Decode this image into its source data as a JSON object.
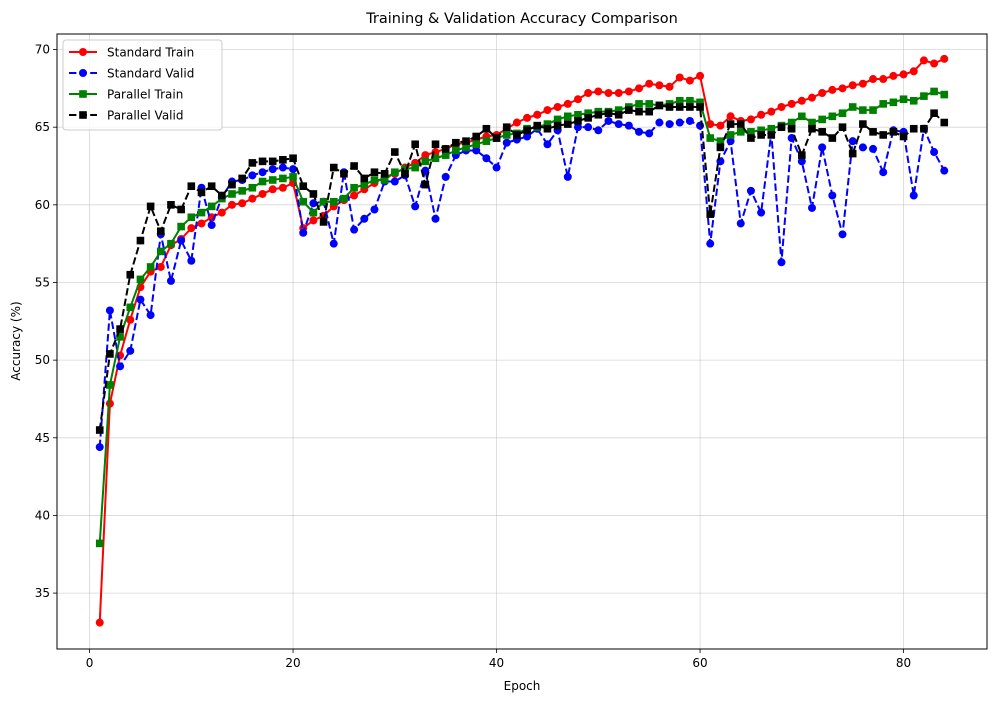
{
  "chart_data": {
    "type": "line",
    "title": "Training & Validation Accuracy Comparison",
    "xlabel": "Epoch",
    "ylabel": "Accuracy (%)",
    "xlim": [
      -3.2,
      88.2
    ],
    "ylim": [
      31.4,
      71.0
    ],
    "xticks": [
      0,
      20,
      40,
      60,
      80
    ],
    "yticks": [
      35,
      40,
      45,
      50,
      55,
      60,
      65,
      70
    ],
    "grid": true,
    "legend": "top-left",
    "x": [
      1,
      2,
      3,
      4,
      5,
      6,
      7,
      8,
      9,
      10,
      11,
      12,
      13,
      14,
      15,
      16,
      17,
      18,
      19,
      20,
      21,
      22,
      23,
      24,
      25,
      26,
      27,
      28,
      29,
      30,
      31,
      32,
      33,
      34,
      35,
      36,
      37,
      38,
      39,
      40,
      41,
      42,
      43,
      44,
      45,
      46,
      47,
      48,
      49,
      50,
      51,
      52,
      53,
      54,
      55,
      56,
      57,
      58,
      59,
      60,
      61,
      62,
      63,
      64,
      65,
      66,
      67,
      68,
      69,
      70,
      71,
      72,
      73,
      74,
      75,
      76,
      77,
      78,
      79,
      80,
      81,
      82,
      83,
      84
    ],
    "series": [
      {
        "name": "Standard Train",
        "color": "#ff0000",
        "line": "solid",
        "marker": "circle",
        "values": [
          33.1,
          47.2,
          50.3,
          52.6,
          54.7,
          55.7,
          56.0,
          57.4,
          57.8,
          58.5,
          58.8,
          59.2,
          59.5,
          60.0,
          60.1,
          60.4,
          60.7,
          61.0,
          61.1,
          61.4,
          58.5,
          59.0,
          59.3,
          59.9,
          60.3,
          60.6,
          61.0,
          61.4,
          61.8,
          62.0,
          62.4,
          62.7,
          63.2,
          63.4,
          63.6,
          63.9,
          64.0,
          64.2,
          64.4,
          64.5,
          64.9,
          65.3,
          65.6,
          65.8,
          66.1,
          66.3,
          66.5,
          66.8,
          67.2,
          67.3,
          67.2,
          67.2,
          67.3,
          67.5,
          67.8,
          67.7,
          67.6,
          68.2,
          68.0,
          68.3,
          65.2,
          65.1,
          65.7,
          65.4,
          65.5,
          65.8,
          66.0,
          66.3,
          66.5,
          66.7,
          66.9,
          67.2,
          67.4,
          67.5,
          67.7,
          67.8,
          68.1,
          68.1,
          68.3,
          68.4,
          68.6,
          69.3,
          69.1,
          69.4
        ]
      },
      {
        "name": "Standard Valid",
        "color": "#0000ff",
        "line": "dashed",
        "marker": "circle",
        "values": [
          44.4,
          53.2,
          49.6,
          50.6,
          53.9,
          52.9,
          58.1,
          55.1,
          57.7,
          56.4,
          61.1,
          58.7,
          60.5,
          61.5,
          61.6,
          61.9,
          62.1,
          62.3,
          62.4,
          62.3,
          58.2,
          60.1,
          60.2,
          57.5,
          62.1,
          58.4,
          59.1,
          59.7,
          61.5,
          61.5,
          61.9,
          59.9,
          62.2,
          59.1,
          61.8,
          63.2,
          63.5,
          63.5,
          63.0,
          62.4,
          64.0,
          64.2,
          64.4,
          64.9,
          63.9,
          64.8,
          61.8,
          65.0,
          65.0,
          64.8,
          65.4,
          65.2,
          65.1,
          64.7,
          64.6,
          65.3,
          65.2,
          65.3,
          65.4,
          65.1,
          57.5,
          62.8,
          64.1,
          58.8,
          60.9,
          59.5,
          64.6,
          56.3,
          64.3,
          62.8,
          59.8,
          63.7,
          60.6,
          58.1,
          64.1,
          63.7,
          63.6,
          62.1,
          64.8,
          64.7,
          60.6,
          64.9,
          63.4,
          62.2
        ]
      },
      {
        "name": "Parallel Train",
        "color": "#008000",
        "line": "solid",
        "marker": "square",
        "values": [
          38.2,
          48.4,
          51.5,
          53.4,
          55.2,
          56.0,
          57.0,
          57.5,
          58.6,
          59.2,
          59.5,
          59.9,
          60.4,
          60.7,
          60.9,
          61.1,
          61.5,
          61.6,
          61.7,
          61.8,
          60.2,
          59.5,
          60.2,
          60.2,
          60.4,
          61.1,
          61.3,
          61.6,
          61.6,
          62.1,
          62.3,
          62.4,
          62.8,
          63.0,
          63.2,
          63.5,
          63.7,
          63.9,
          64.1,
          64.3,
          64.5,
          64.6,
          64.9,
          65.0,
          65.2,
          65.5,
          65.7,
          65.8,
          65.9,
          66.0,
          66.0,
          66.1,
          66.3,
          66.5,
          66.5,
          66.4,
          66.5,
          66.7,
          66.7,
          66.6,
          64.3,
          64.1,
          64.5,
          64.7,
          64.7,
          64.8,
          64.9,
          65.1,
          65.3,
          65.7,
          65.3,
          65.5,
          65.7,
          65.9,
          66.3,
          66.1,
          66.1,
          66.5,
          66.6,
          66.8,
          66.7,
          67.0,
          67.3,
          67.1
        ]
      },
      {
        "name": "Parallel Valid",
        "color": "#000000",
        "line": "dashed",
        "marker": "square",
        "values": [
          45.5,
          50.4,
          52.0,
          55.5,
          57.7,
          59.9,
          58.3,
          60.0,
          59.7,
          61.2,
          60.8,
          61.2,
          60.6,
          61.3,
          61.7,
          62.7,
          62.8,
          62.8,
          62.9,
          63.0,
          61.2,
          60.7,
          58.9,
          62.4,
          62.0,
          62.5,
          61.7,
          62.1,
          62.0,
          63.4,
          62.0,
          63.9,
          61.3,
          63.9,
          63.6,
          64.0,
          64.1,
          64.4,
          64.9,
          64.3,
          65.0,
          64.5,
          64.8,
          65.1,
          64.9,
          65.1,
          65.2,
          65.4,
          65.6,
          65.8,
          65.9,
          65.8,
          66.1,
          66.0,
          66.0,
          66.4,
          66.3,
          66.3,
          66.3,
          66.3,
          59.4,
          63.7,
          65.2,
          65.2,
          64.3,
          64.5,
          64.5,
          65.0,
          64.9,
          63.2,
          64.9,
          64.7,
          64.3,
          65.0,
          63.3,
          65.2,
          64.7,
          64.5,
          64.7,
          64.4,
          64.9,
          64.9,
          65.9,
          65.3
        ]
      }
    ]
  }
}
